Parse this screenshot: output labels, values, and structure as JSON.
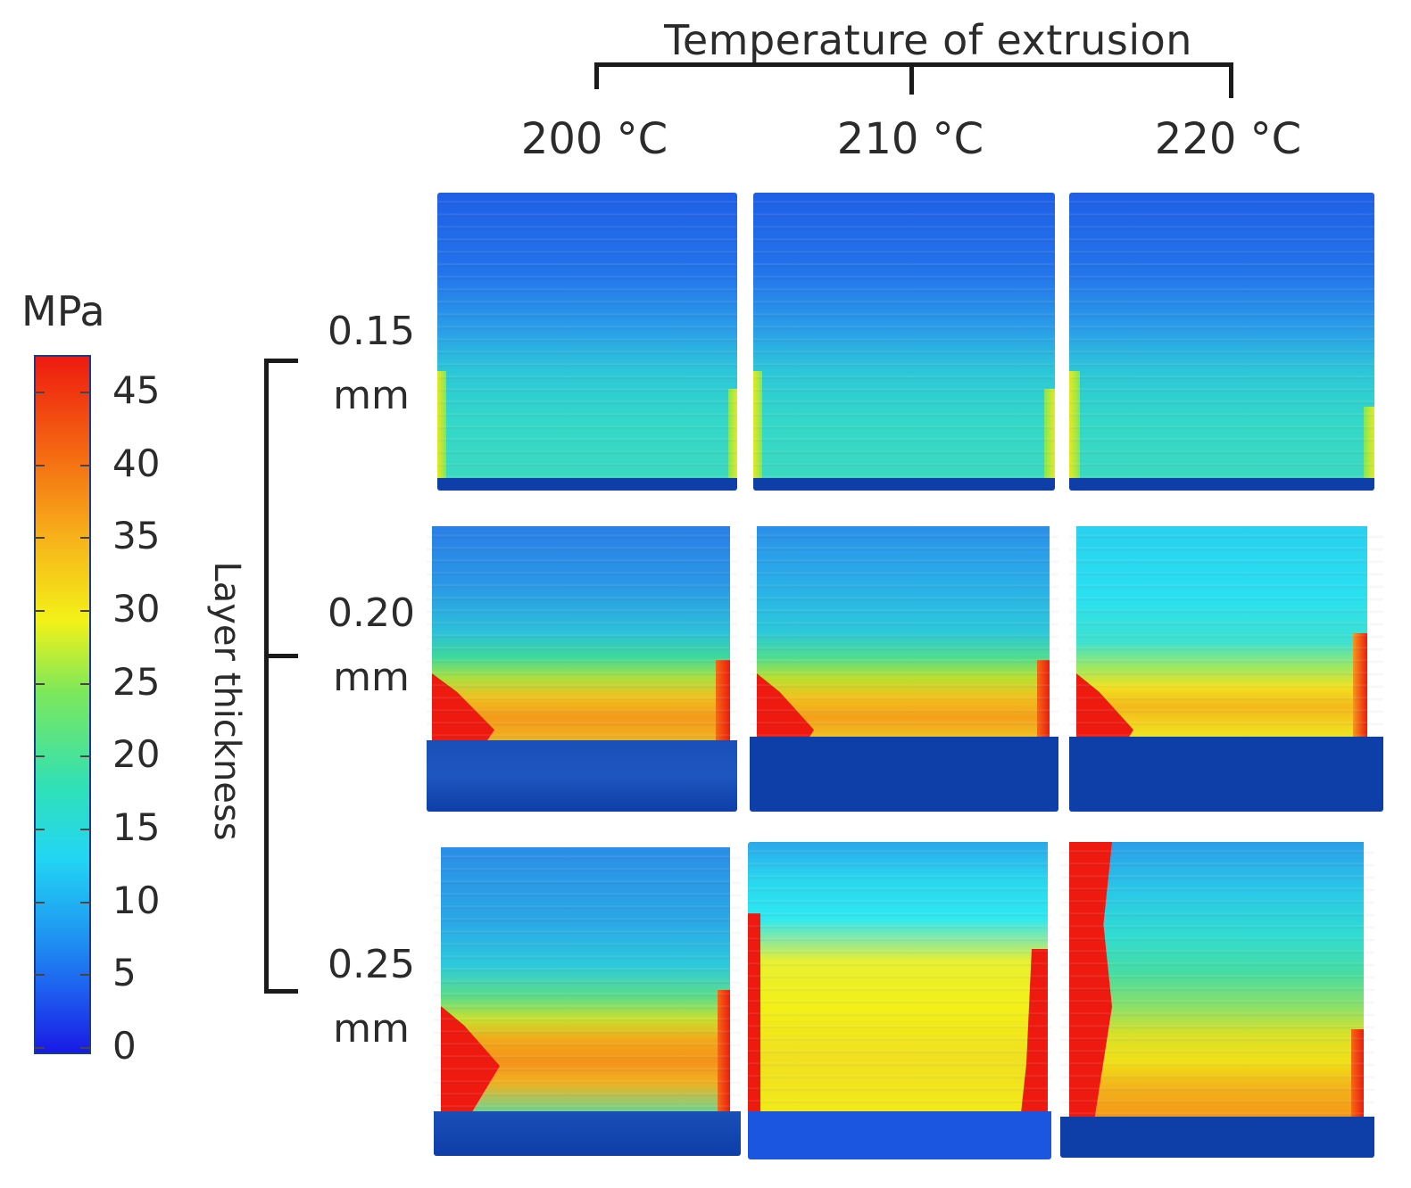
{
  "header": {
    "title": "Temperature of extrusion",
    "columns": [
      "200 °C",
      "210 °C",
      "220 °C"
    ]
  },
  "colorbar": {
    "unit": "MPa",
    "ticks": [
      "45",
      "40",
      "35",
      "30",
      "25",
      "20",
      "15",
      "10",
      "5",
      "0"
    ],
    "min": 0,
    "max": 48,
    "colors": [
      "#1a1ae6",
      "#1f9df2",
      "#22d6f3",
      "#7ee85a",
      "#f2f218",
      "#f46a12",
      "#ee1a10"
    ]
  },
  "rows": {
    "title": "Layer thickness",
    "labels": [
      {
        "value": "0.15",
        "unit": "mm"
      },
      {
        "value": "0.20",
        "unit": "mm"
      },
      {
        "value": "0.25",
        "unit": "mm"
      }
    ]
  },
  "panels": [
    {
      "row": "0.15 mm",
      "col": "200 °C",
      "scheme": "cool"
    },
    {
      "row": "0.15 mm",
      "col": "210 °C",
      "scheme": "cool"
    },
    {
      "row": "0.15 mm",
      "col": "220 °C",
      "scheme": "cool"
    },
    {
      "row": "0.20 mm",
      "col": "200 °C",
      "scheme": "warm-base"
    },
    {
      "row": "0.20 mm",
      "col": "210 °C",
      "scheme": "warm-base"
    },
    {
      "row": "0.20 mm",
      "col": "220 °C",
      "scheme": "warm-base-yellow"
    },
    {
      "row": "0.25 mm",
      "col": "200 °C",
      "scheme": "warm-base"
    },
    {
      "row": "0.25 mm",
      "col": "210 °C",
      "scheme": "hot-yellow"
    },
    {
      "row": "0.25 mm",
      "col": "220 °C",
      "scheme": "hot-left"
    }
  ]
}
